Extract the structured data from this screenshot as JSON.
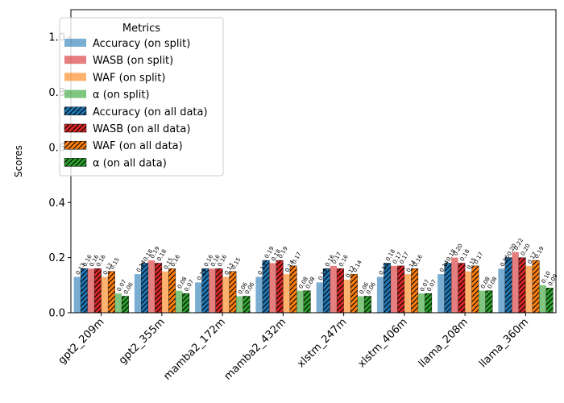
{
  "chart_data": {
    "type": "bar",
    "title": "",
    "xlabel": "",
    "ylabel": "Scores",
    "ylim": [
      0,
      1.1
    ],
    "yticks": [
      "0.0",
      "0.2",
      "0.4",
      "0.6",
      "0.8",
      "1.0"
    ],
    "grid": false,
    "legend": {
      "title": "Metrics",
      "placement": "top-left"
    },
    "categories": [
      "gpt2_209m",
      "gpt2_355m",
      "mamba2_172m",
      "mamba2_432m",
      "xlstm_247m",
      "xlstm_406m",
      "llama_208m",
      "llama_360m"
    ],
    "series": [
      {
        "name": "Accuracy (on split)",
        "color": "#1f77b4",
        "hatch": false,
        "values": [
          0.13,
          0.14,
          0.11,
          0.13,
          0.11,
          0.13,
          0.14,
          0.16
        ],
        "labels": [
          "0.13",
          "0.14",
          "0.11",
          "0.13",
          "0.11",
          "0.13",
          "0.14",
          "0.16"
        ]
      },
      {
        "name": "WASB (on split)",
        "color": "#d62728",
        "hatch": false,
        "values": [
          0.16,
          0.19,
          0.16,
          0.18,
          0.17,
          0.17,
          0.2,
          0.22
        ],
        "labels": [
          "0.16",
          "0.19",
          "0.16",
          "0.18",
          "0.17",
          "0.17",
          "0.20",
          "0.22"
        ]
      },
      {
        "name": "WAF (on split)",
        "color": "#ff7f0e",
        "hatch": false,
        "values": [
          0.13,
          0.15,
          0.13,
          0.14,
          0.12,
          0.14,
          0.15,
          0.17
        ],
        "labels": [
          "0.13",
          "0.15",
          "0.13",
          "0.14",
          "0.12",
          "0.14",
          "0.15",
          "0.17"
        ]
      },
      {
        "name": "α (on split)",
        "color": "#2ca02c",
        "hatch": false,
        "values": [
          0.07,
          0.08,
          0.06,
          0.08,
          0.06,
          0.07,
          0.08,
          0.1
        ],
        "labels": [
          "0.07",
          "0.08",
          "0.06",
          "0.08",
          "0.06",
          "0.07",
          "0.08",
          "0.10"
        ]
      },
      {
        "name": "Accuracy (on all data)",
        "color": "#1f77b4",
        "hatch": true,
        "values": [
          0.16,
          0.18,
          0.16,
          0.19,
          0.16,
          0.18,
          0.18,
          0.2
        ],
        "labels": [
          "0.16",
          "0.18",
          "0.16",
          "0.19",
          "0.16",
          "0.18",
          "0.18",
          "0.20"
        ]
      },
      {
        "name": "WASB (on all data)",
        "color": "#d62728",
        "hatch": true,
        "values": [
          0.16,
          0.18,
          0.16,
          0.19,
          0.16,
          0.17,
          0.18,
          0.2
        ],
        "labels": [
          "0.16",
          "0.18",
          "0.16",
          "0.19",
          "0.16",
          "0.17",
          "0.18",
          "0.20"
        ]
      },
      {
        "name": "WAF (on all data)",
        "color": "#ff7f0e",
        "hatch": true,
        "values": [
          0.15,
          0.16,
          0.15,
          0.17,
          0.14,
          0.16,
          0.17,
          0.19
        ],
        "labels": [
          "0.15",
          "0.16",
          "0.15",
          "0.17",
          "0.14",
          "0.16",
          "0.17",
          "0.19"
        ]
      },
      {
        "name": "α (on all data)",
        "color": "#2ca02c",
        "hatch": true,
        "values": [
          0.06,
          0.07,
          0.06,
          0.08,
          0.06,
          0.07,
          0.08,
          0.09
        ],
        "labels": [
          "0.06",
          "0.07",
          "0.06",
          "0.08",
          "0.06",
          "0.07",
          "0.08",
          "0.09"
        ]
      }
    ]
  }
}
